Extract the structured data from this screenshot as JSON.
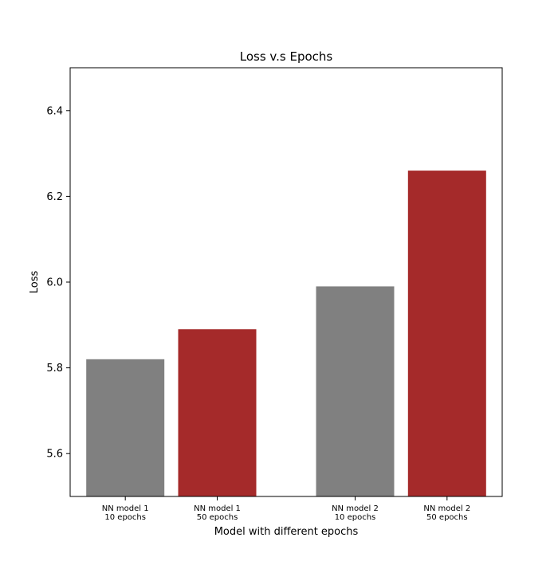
{
  "chart_data": {
    "type": "bar",
    "title": "Loss v.s Epochs",
    "xlabel": "Model with different epochs",
    "ylabel": "Loss",
    "ylim": [
      5.5,
      6.5
    ],
    "yticks": [
      "5.6",
      "5.8",
      "6.0",
      "6.2",
      "6.4"
    ],
    "categories": [
      [
        "NN model 1",
        "10 epochs"
      ],
      [
        "NN model 1",
        "50 epochs"
      ],
      [
        "NN model 2",
        "10 epochs"
      ],
      [
        "NN model 2",
        "50 epochs"
      ]
    ],
    "values": [
      5.82,
      5.89,
      5.99,
      6.26
    ],
    "colors": [
      "#808080",
      "#a52a2a",
      "#808080",
      "#a52a2a"
    ],
    "grid": false,
    "legend": "none"
  }
}
